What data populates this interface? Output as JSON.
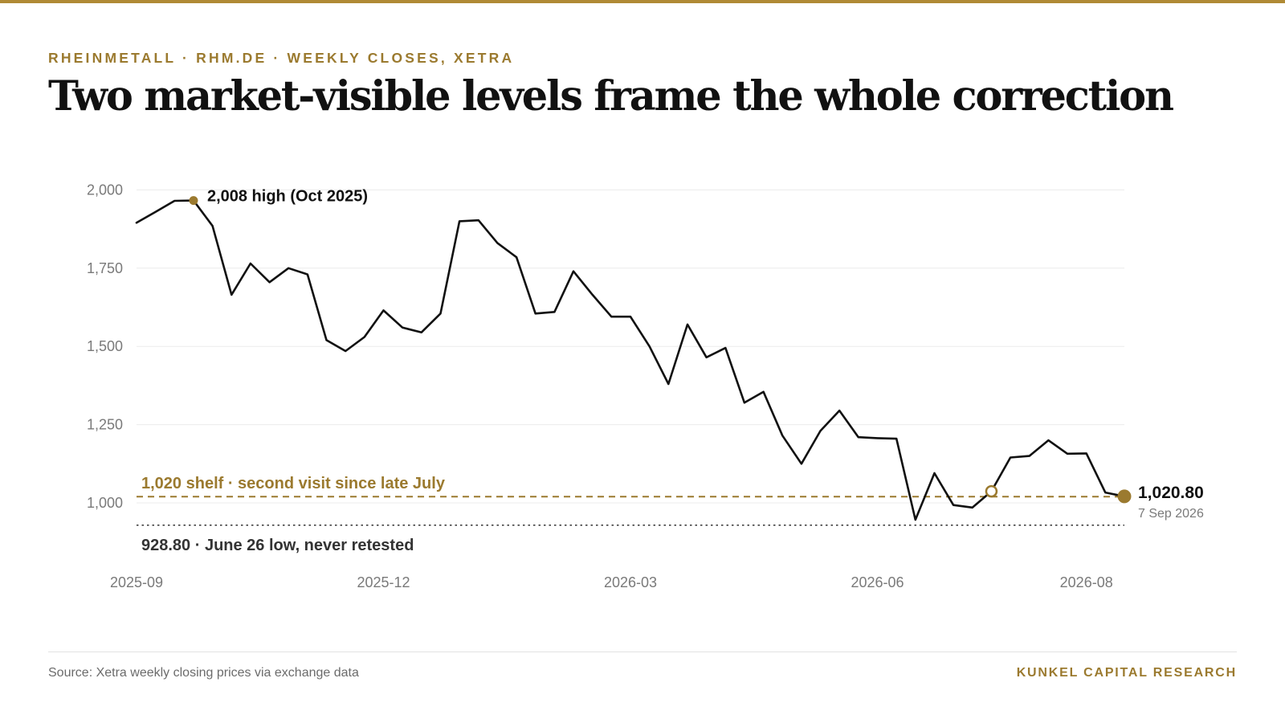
{
  "header": {
    "kicker": "RHEINMETALL · RHM.DE · WEEKLY CLOSES, XETRA",
    "title": "Two market-visible levels frame the whole correction"
  },
  "footer": {
    "source": "Source: Xetra weekly closing prices via exchange data",
    "brand": "KUNKEL CAPITAL RESEARCH"
  },
  "colors": {
    "accent": "#9b7a2f",
    "line": "#111111",
    "grid": "#ececec",
    "low_line": "#333333"
  },
  "chart_data": {
    "type": "line",
    "title": "Two market-visible levels frame the whole correction",
    "series": [
      {
        "values": [
          1895,
          1930,
          1965,
          1966,
          1885,
          1665,
          1765,
          1705,
          1750,
          1730,
          1520,
          1485,
          1530,
          1615,
          1560,
          1545,
          1605,
          1900,
          1903,
          1830,
          1785,
          1605,
          1610,
          1740,
          1665,
          1595,
          1595,
          1500,
          1380,
          1570,
          1465,
          1495,
          1320,
          1355,
          1215,
          1125,
          1230,
          1295,
          1210,
          1207,
          1205,
          946,
          1095,
          993,
          985,
          1037,
          1145,
          1150,
          1200,
          1157,
          1158,
          1033,
          1020.8
        ]
      }
    ],
    "ylim": [
      928.8,
      2008
    ],
    "yticks": [
      1000,
      1250,
      1500,
      1750,
      2000
    ],
    "ytick_labels": [
      "1,000",
      "1,250",
      "1,500",
      "1,750",
      "2,000"
    ],
    "xtick_positions": [
      0,
      13,
      26,
      39,
      50
    ],
    "xtick_labels": [
      "2025-09",
      "2025-12",
      "2026-03",
      "2026-06",
      "2026-08"
    ],
    "grid": true,
    "reference_lines": [
      {
        "value": 1020,
        "style": "dashed",
        "label": "1,020 shelf · second visit since late July"
      },
      {
        "value": 928.8,
        "style": "dotted",
        "label": "928.80 · June 26 low, never retested"
      }
    ],
    "annotations": {
      "high": {
        "index": 3,
        "value": 2008,
        "label": "2,008 high (Oct 2025)"
      },
      "revisit": {
        "index": 45,
        "value": 1037
      },
      "last": {
        "index": 52,
        "value": 1020.8,
        "label": "1,020.80",
        "date": "7 Sep 2026"
      }
    }
  }
}
